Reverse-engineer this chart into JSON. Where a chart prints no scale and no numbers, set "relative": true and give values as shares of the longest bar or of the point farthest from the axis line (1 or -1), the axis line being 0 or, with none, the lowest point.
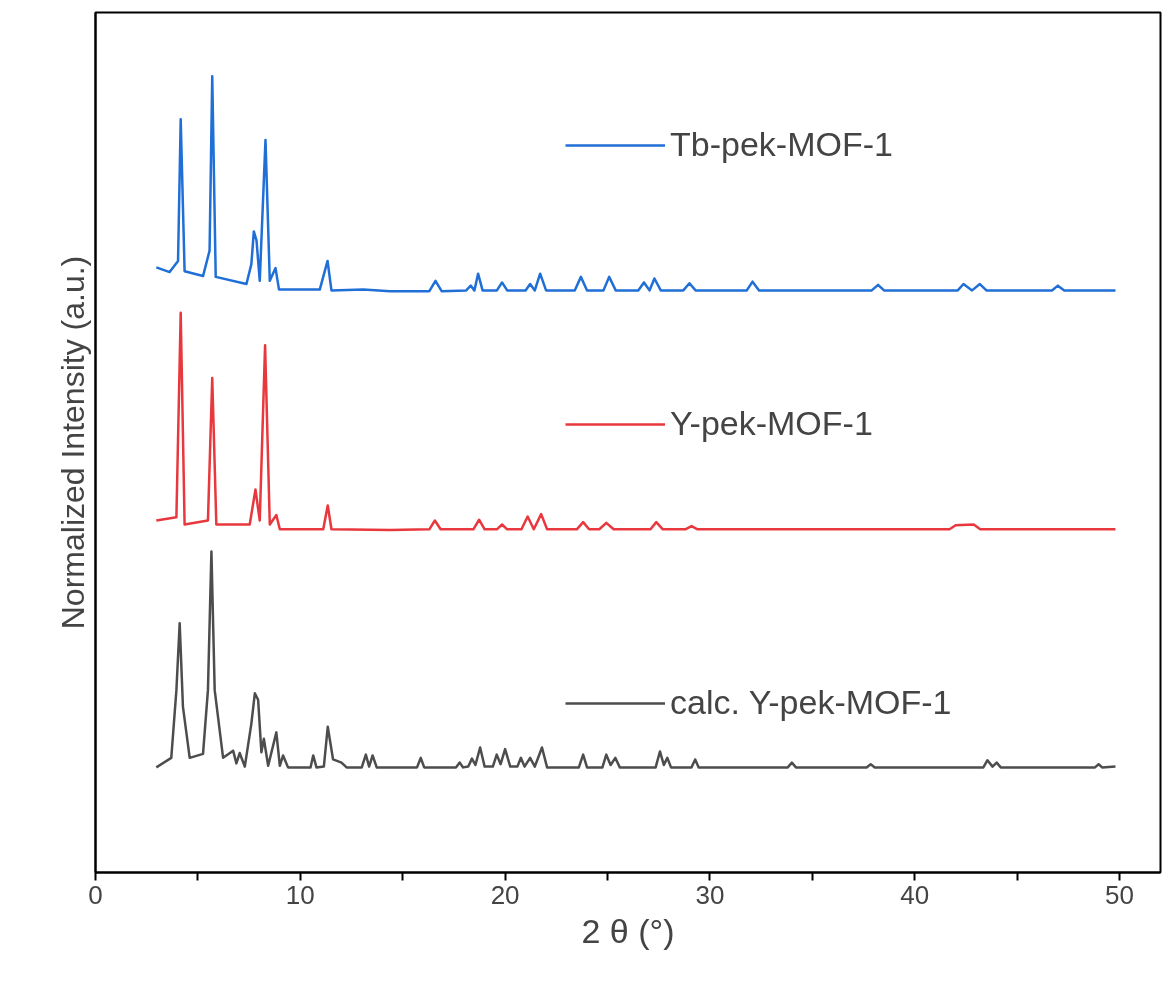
{
  "chart_data": {
    "type": "line",
    "relative": true,
    "xlabel": "2 θ (°)",
    "ylabel": "Normalized Intensity (a.u.)",
    "xlim": [
      0,
      52
    ],
    "xticks": [
      0,
      {
        "value": 5,
        "label": null
      },
      10,
      {
        "value": 15,
        "label": null
      },
      20,
      {
        "value": 25,
        "label": null
      },
      30,
      {
        "value": 35,
        "label": null
      },
      40,
      {
        "value": 45,
        "label": null
      },
      50
    ],
    "grid": false,
    "legend": "right",
    "line_style": "solid",
    "marker": "none",
    "series": [
      {
        "name": "Tb-pek-MOF-1",
        "color": "#1f6fd6",
        "x": [
          2.97,
          3.62,
          4.03,
          4.16,
          4.35,
          5.25,
          5.57,
          5.7,
          5.87,
          7.37,
          7.61,
          7.73,
          7.86,
          8.02,
          8.3,
          8.51,
          8.79,
          8.96,
          10.95,
          11.33,
          11.52,
          13.07,
          14.38,
          16.3,
          16.6,
          16.9,
          18.1,
          18.32,
          18.5,
          18.68,
          18.9,
          19.6,
          19.85,
          20.1,
          21.0,
          21.22,
          21.45,
          21.71,
          22.0,
          23.4,
          23.7,
          24.0,
          24.8,
          25.08,
          25.4,
          26.5,
          26.78,
          27.05,
          27.29,
          27.6,
          28.7,
          29.0,
          29.3,
          31.8,
          32.08,
          32.4,
          37.9,
          38.21,
          38.5,
          42.1,
          42.38,
          42.8,
          43.18,
          43.5,
          46.7,
          46.99,
          47.3,
          49.8
        ],
        "values": [
          0.76,
          0.754,
          0.768,
          0.946,
          0.755,
          0.749,
          0.781,
          1.0,
          0.748,
          0.739,
          0.764,
          0.805,
          0.794,
          0.743,
          0.92,
          0.743,
          0.759,
          0.732,
          0.732,
          0.768,
          0.731,
          0.732,
          0.73,
          0.73,
          0.743,
          0.73,
          0.731,
          0.737,
          0.731,
          0.752,
          0.731,
          0.731,
          0.741,
          0.731,
          0.731,
          0.739,
          0.731,
          0.752,
          0.731,
          0.731,
          0.748,
          0.731,
          0.731,
          0.748,
          0.731,
          0.731,
          0.741,
          0.731,
          0.746,
          0.731,
          0.731,
          0.74,
          0.731,
          0.731,
          0.742,
          0.731,
          0.731,
          0.738,
          0.731,
          0.731,
          0.739,
          0.731,
          0.739,
          0.731,
          0.731,
          0.737,
          0.731,
          0.731
        ]
      },
      {
        "name": "Y-pek-MOF-1",
        "color": "#e8383d",
        "x": [
          2.97,
          3.95,
          4.16,
          4.35,
          5.49,
          5.7,
          5.9,
          7.53,
          7.81,
          8.02,
          8.28,
          8.51,
          8.83,
          9.0,
          11.12,
          11.34,
          11.52,
          14.38,
          16.3,
          16.57,
          16.85,
          18.45,
          18.73,
          19.0,
          19.6,
          19.85,
          20.1,
          20.8,
          21.1,
          21.4,
          21.76,
          22.05,
          23.5,
          23.81,
          24.1,
          24.6,
          24.94,
          25.3,
          27.1,
          27.38,
          27.7,
          28.8,
          29.1,
          29.4,
          41.7,
          42.0,
          42.88,
          43.2,
          49.8
        ],
        "values": [
          0.442,
          0.446,
          0.703,
          0.437,
          0.442,
          0.621,
          0.437,
          0.437,
          0.481,
          0.442,
          0.662,
          0.437,
          0.449,
          0.431,
          0.431,
          0.461,
          0.431,
          0.43,
          0.431,
          0.442,
          0.431,
          0.431,
          0.443,
          0.431,
          0.431,
          0.437,
          0.431,
          0.431,
          0.447,
          0.431,
          0.45,
          0.431,
          0.431,
          0.44,
          0.431,
          0.431,
          0.439,
          0.431,
          0.431,
          0.44,
          0.431,
          0.431,
          0.435,
          0.431,
          0.431,
          0.436,
          0.437,
          0.431,
          0.431
        ]
      },
      {
        "name": "calc. Y-pek-MOF-1",
        "color": "#4d4d4d",
        "x": [
          2.97,
          3.7,
          3.95,
          4.11,
          4.27,
          4.6,
          5.25,
          5.49,
          5.66,
          5.82,
          6.23,
          6.72,
          6.88,
          7.04,
          7.29,
          7.61,
          7.78,
          7.94,
          8.1,
          8.22,
          8.43,
          8.83,
          9.0,
          9.16,
          9.4,
          10.5,
          10.63,
          10.79,
          11.15,
          11.34,
          11.6,
          12.01,
          12.26,
          13.0,
          13.2,
          13.36,
          13.53,
          13.73,
          14.38,
          15.7,
          15.88,
          16.05,
          17.6,
          17.78,
          17.95,
          18.2,
          18.38,
          18.55,
          18.78,
          19.0,
          19.4,
          19.59,
          19.78,
          20.0,
          20.25,
          20.6,
          20.77,
          20.95,
          21.22,
          21.45,
          21.8,
          22.05,
          23.6,
          23.81,
          24.0,
          24.75,
          24.94,
          25.15,
          25.38,
          25.6,
          27.35,
          27.56,
          27.75,
          27.92,
          28.1,
          29.1,
          29.28,
          29.45,
          33.8,
          34.0,
          34.2,
          37.65,
          37.85,
          38.05,
          43.35,
          43.55,
          43.8,
          44.0,
          44.2,
          48.8,
          48.98,
          49.15,
          49.8
        ],
        "values": [
          0.132,
          0.144,
          0.229,
          0.313,
          0.208,
          0.144,
          0.149,
          0.229,
          0.403,
          0.229,
          0.144,
          0.153,
          0.137,
          0.15,
          0.133,
          0.187,
          0.225,
          0.217,
          0.151,
          0.168,
          0.134,
          0.176,
          0.134,
          0.147,
          0.132,
          0.132,
          0.147,
          0.132,
          0.133,
          0.183,
          0.142,
          0.138,
          0.132,
          0.132,
          0.148,
          0.133,
          0.147,
          0.132,
          0.132,
          0.132,
          0.144,
          0.132,
          0.132,
          0.138,
          0.132,
          0.133,
          0.143,
          0.135,
          0.157,
          0.133,
          0.133,
          0.148,
          0.136,
          0.155,
          0.133,
          0.133,
          0.144,
          0.133,
          0.144,
          0.133,
          0.157,
          0.132,
          0.132,
          0.148,
          0.132,
          0.132,
          0.148,
          0.135,
          0.144,
          0.132,
          0.132,
          0.152,
          0.135,
          0.144,
          0.132,
          0.132,
          0.142,
          0.132,
          0.132,
          0.138,
          0.132,
          0.132,
          0.136,
          0.132,
          0.132,
          0.141,
          0.133,
          0.138,
          0.132,
          0.132,
          0.136,
          0.132,
          0.133
        ]
      }
    ]
  }
}
